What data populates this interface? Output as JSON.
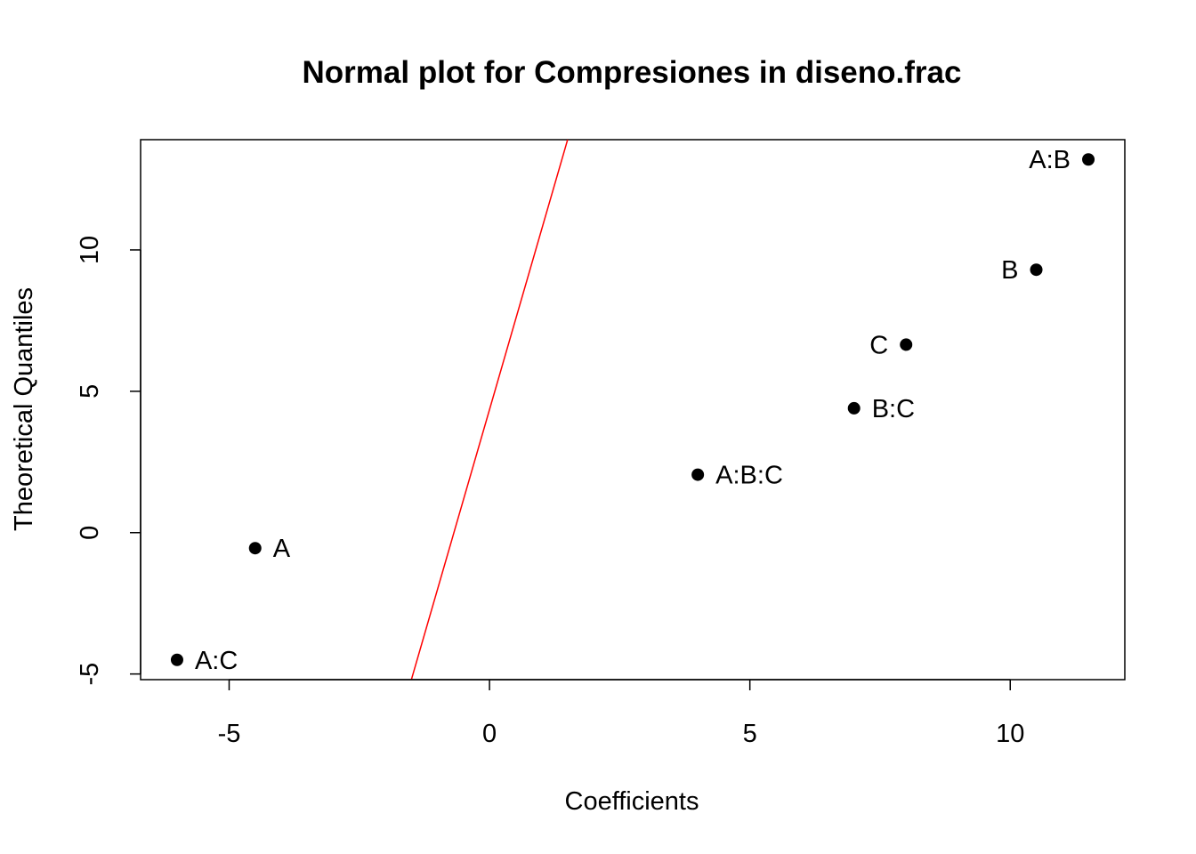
{
  "chart_data": {
    "type": "scatter",
    "title": "Normal plot for Compresiones in diseno.frac",
    "xlabel": "Coefficients",
    "ylabel": "Theoretical Quantiles",
    "xlim": [
      -6.7,
      12.2
    ],
    "ylim": [
      -5.2,
      13.9
    ],
    "xticks": [
      -5,
      0,
      5,
      10
    ],
    "yticks": [
      -5,
      0,
      5,
      10
    ],
    "xtick_labels": [
      "-5",
      "0",
      "5",
      "10"
    ],
    "ytick_labels": [
      "-5",
      "0",
      "5",
      "10"
    ],
    "grid": false,
    "points": [
      {
        "label": "A:C",
        "x": -6.0,
        "y": -4.5,
        "label_side": "right"
      },
      {
        "label": "A",
        "x": -4.5,
        "y": -0.55,
        "label_side": "right"
      },
      {
        "label": "A:B:C",
        "x": 4.0,
        "y": 2.05,
        "label_side": "right"
      },
      {
        "label": "B:C",
        "x": 7.0,
        "y": 4.4,
        "label_side": "right"
      },
      {
        "label": "C",
        "x": 8.0,
        "y": 6.65,
        "label_side": "left"
      },
      {
        "label": "B",
        "x": 10.5,
        "y": 9.3,
        "label_side": "left"
      },
      {
        "label": "A:B",
        "x": 11.5,
        "y": 13.2,
        "label_side": "left"
      }
    ],
    "reference_line": {
      "color": "#ff0000",
      "from": {
        "x": -1.5,
        "y": -5.2
      },
      "to": {
        "x": 1.5,
        "y": 13.9
      }
    },
    "point_color": "#000000"
  }
}
